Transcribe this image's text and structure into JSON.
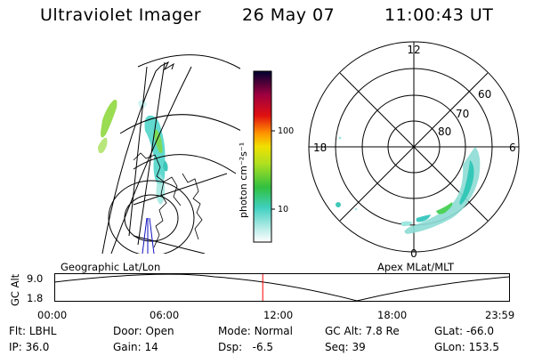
{
  "header": {
    "instrument": "Ultraviolet Imager",
    "date": "26 May 07",
    "time": "11:00:43 UT"
  },
  "colorbar": {
    "label": "photon cm⁻²s⁻¹",
    "ticks": [
      "100",
      "10"
    ],
    "scale": "log"
  },
  "left_map": {
    "caption": "Geographic Lat/Lon"
  },
  "right_map": {
    "caption": "Apex MLat/MLT",
    "mlt_labels": [
      "12",
      "18",
      "6",
      "0"
    ],
    "lat_labels": [
      "60",
      "70",
      "80"
    ]
  },
  "altitude_plot": {
    "ylabel": "GC Alt",
    "yticks": [
      "9.0",
      "1.8"
    ],
    "xticks": [
      "00:00",
      "06:00",
      "12:00",
      "18:00",
      "23:59"
    ],
    "current_marker_time": "11:00",
    "marker_color": "#ff0000"
  },
  "info": {
    "row1": [
      {
        "label": "Flt:",
        "value": "LBHL"
      },
      {
        "label": "Door:",
        "value": "Open"
      },
      {
        "label": "Mode:",
        "value": "Normal"
      },
      {
        "label": "GC Alt:",
        "value": "7.8 Re"
      },
      {
        "label": "GLat:",
        "value": "-66.0"
      }
    ],
    "row2": [
      {
        "label": "IP:",
        "value": "36.0"
      },
      {
        "label": "Gain:",
        "value": "14"
      },
      {
        "label": "Dsp:",
        "value": "-6.5"
      },
      {
        "label": "Seq:",
        "value": "39"
      },
      {
        "label": "GLon:",
        "value": "153.5"
      }
    ]
  }
}
